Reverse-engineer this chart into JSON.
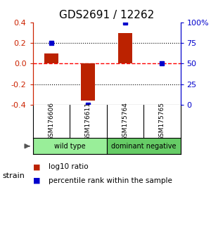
{
  "title": "GDS2691 / 12262",
  "samples": [
    "GSM176606",
    "GSM176611",
    "GSM175764",
    "GSM175765"
  ],
  "log10_ratio": [
    0.1,
    -0.36,
    0.3,
    0.0
  ],
  "percentile_rank": [
    75,
    0,
    100,
    50
  ],
  "groups": [
    {
      "label": "wild type",
      "indices": [
        0,
        1
      ],
      "color": "#99ee99"
    },
    {
      "label": "dominant negative",
      "indices": [
        2,
        3
      ],
      "color": "#66cc66"
    }
  ],
  "group_label": "strain",
  "ylim": [
    -0.4,
    0.4
  ],
  "y2lim": [
    0,
    100
  ],
  "yticks": [
    -0.4,
    -0.2,
    0.0,
    0.2,
    0.4
  ],
  "y2ticks": [
    0,
    25,
    50,
    75,
    100
  ],
  "y2tick_labels": [
    "0",
    "25",
    "50",
    "75",
    "100%"
  ],
  "hlines": [
    -0.2,
    0.0,
    0.2
  ],
  "hline_colors": [
    "black",
    "red",
    "black"
  ],
  "hline_styles": [
    "dotted",
    "dashed",
    "dotted"
  ],
  "bar_color": "#bb2200",
  "dot_color": "#0000cc",
  "legend_items": [
    {
      "color": "#bb2200",
      "label": "log10 ratio"
    },
    {
      "color": "#0000cc",
      "label": "percentile rank within the sample"
    }
  ],
  "sample_box_color": "#cccccc",
  "background_color": "#ffffff",
  "title_fontsize": 11,
  "axis_fontsize": 8,
  "label_fontsize": 7.5,
  "legend_fontsize": 7.5
}
